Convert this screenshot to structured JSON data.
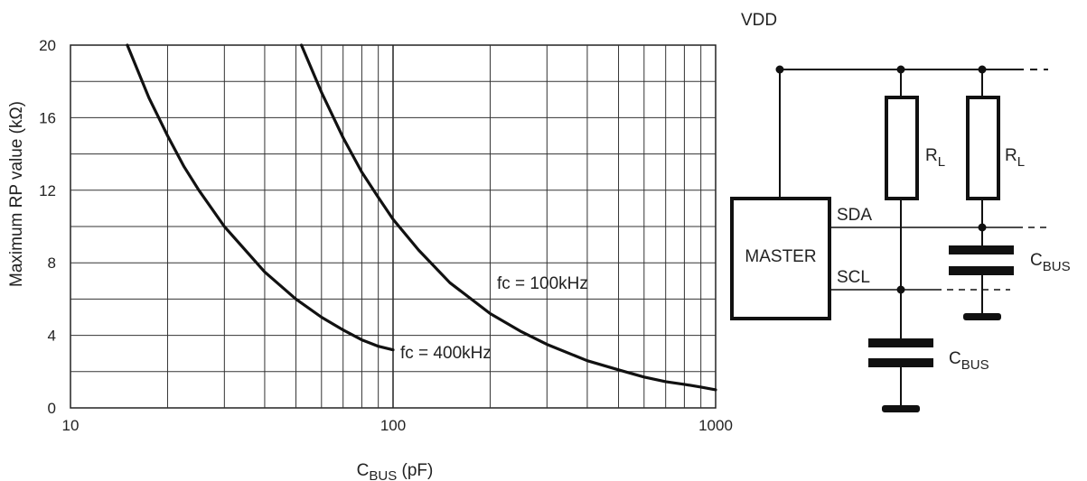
{
  "chart_data": {
    "type": "line",
    "ylabel": "Maximum RP value (kΩ)",
    "xlabel_main": "C",
    "xlabel_sub": "BUS",
    "xlabel_unit": " (pF)",
    "x_scale": "log",
    "xlim": [
      10,
      1000
    ],
    "ylim": [
      0,
      20
    ],
    "x_ticks": [
      "10",
      "100",
      "1000"
    ],
    "y_ticks": [
      "0",
      "4",
      "8",
      "12",
      "16",
      "20"
    ],
    "grid": true,
    "series": [
      {
        "name": "fc = 400kHz",
        "x": [
          15,
          17.5,
          20,
          22.5,
          25,
          30,
          40,
          50,
          60,
          70,
          80,
          90,
          100
        ],
        "y": [
          20,
          17.1,
          15,
          13.3,
          12,
          10,
          7.5,
          6,
          5,
          4.3,
          3.75,
          3.4,
          3.2
        ]
      },
      {
        "name": "fc = 100kHz",
        "x": [
          52,
          60,
          70,
          80,
          90,
          100,
          120,
          150,
          200,
          250,
          300,
          400,
          500,
          600,
          700,
          800,
          900,
          1000
        ],
        "y": [
          20,
          17.4,
          14.9,
          13,
          11.6,
          10.4,
          8.7,
          6.9,
          5.2,
          4.2,
          3.5,
          2.6,
          2.1,
          1.7,
          1.45,
          1.3,
          1.15,
          1.0
        ]
      }
    ]
  },
  "circuit": {
    "vdd": "VDD",
    "master": "MASTER",
    "sda": "SDA",
    "scl": "SCL",
    "rl_main": "R",
    "rl_sub": "L",
    "cbus_main": "C",
    "cbus_sub": "BUS"
  }
}
